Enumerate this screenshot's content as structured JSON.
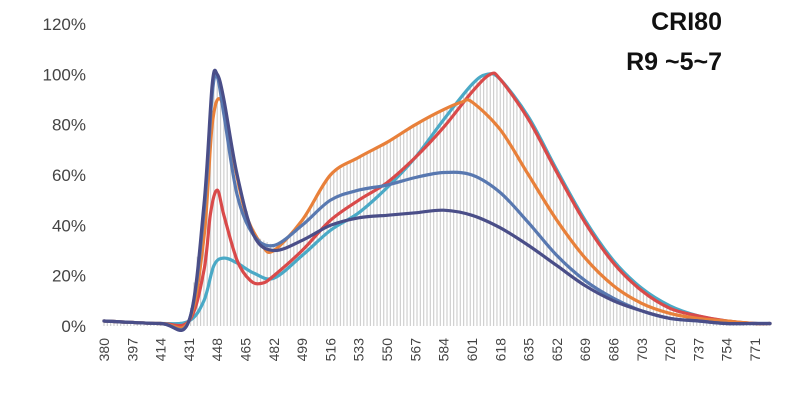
{
  "chart_data": {
    "type": "area",
    "annotations": [
      "CRI80",
      "R9 ~5~7"
    ],
    "xlabel": "",
    "ylabel": "",
    "x_ticks": [
      380,
      397,
      414,
      431,
      448,
      465,
      482,
      499,
      516,
      533,
      550,
      567,
      584,
      601,
      618,
      635,
      652,
      669,
      686,
      703,
      720,
      737,
      754,
      771
    ],
    "y_ticks": [
      "0%",
      "20%",
      "40%",
      "60%",
      "80%",
      "100%",
      "120%"
    ],
    "xlim": [
      380,
      780
    ],
    "ylim": [
      0,
      120
    ],
    "grid": false,
    "legend": "none",
    "series": [
      {
        "color": "#4aa9c6",
        "x": [
          380,
          414,
          431,
          440,
          446,
          452,
          460,
          470,
          482,
          499,
          516,
          533,
          550,
          567,
          584,
          601,
          610,
          618,
          635,
          652,
          669,
          686,
          703,
          720,
          737,
          754,
          771,
          780
        ],
        "values": [
          2,
          1,
          2,
          10,
          24,
          27,
          25,
          21,
          19,
          28,
          38,
          45,
          55,
          67,
          82,
          96,
          100,
          98,
          83,
          62,
          42,
          26,
          15,
          8,
          4,
          2,
          1,
          1
        ]
      },
      {
        "color": "#d94a4a",
        "x": [
          380,
          414,
          431,
          440,
          444,
          448,
          452,
          460,
          468,
          475,
          482,
          499,
          516,
          533,
          550,
          567,
          584,
          601,
          612,
          618,
          635,
          652,
          669,
          686,
          703,
          720,
          737,
          754,
          771,
          780
        ],
        "values": [
          2,
          1,
          2,
          22,
          45,
          54,
          44,
          26,
          18,
          17,
          20,
          30,
          42,
          50,
          57,
          67,
          79,
          93,
          100,
          98,
          82,
          61,
          41,
          25,
          14,
          7,
          4,
          2,
          1,
          1
        ]
      },
      {
        "color": "#e8803a",
        "x": [
          380,
          414,
          431,
          440,
          445,
          450,
          456,
          465,
          475,
          482,
          499,
          516,
          533,
          550,
          567,
          584,
          595,
          601,
          618,
          635,
          652,
          669,
          686,
          703,
          720,
          737,
          754,
          771,
          780
        ],
        "values": [
          2,
          1,
          2,
          35,
          80,
          90,
          72,
          45,
          32,
          30,
          42,
          60,
          67,
          73,
          80,
          86,
          89,
          89,
          78,
          60,
          42,
          27,
          16,
          9,
          5,
          3,
          2,
          1,
          1
        ]
      },
      {
        "color": "#5878b0",
        "x": [
          380,
          414,
          431,
          440,
          445,
          448,
          452,
          460,
          470,
          482,
          499,
          516,
          533,
          550,
          567,
          584,
          601,
          618,
          635,
          652,
          669,
          686,
          703,
          720,
          737,
          754,
          771,
          780
        ],
        "values": [
          2,
          1,
          2,
          45,
          92,
          99,
          84,
          52,
          36,
          32,
          40,
          50,
          54,
          56,
          59,
          61,
          60,
          53,
          41,
          28,
          18,
          11,
          6,
          3,
          2,
          1,
          1,
          1
        ]
      },
      {
        "color": "#4a4e88",
        "x": [
          380,
          414,
          431,
          440,
          445,
          448,
          452,
          460,
          470,
          482,
          499,
          516,
          533,
          550,
          567,
          584,
          601,
          618,
          635,
          652,
          669,
          686,
          703,
          720,
          737,
          754,
          771,
          780
        ],
        "values": [
          2,
          1,
          2,
          48,
          96,
          100,
          90,
          60,
          36,
          30,
          34,
          40,
          43,
          44,
          45,
          46,
          44,
          39,
          32,
          24,
          16,
          10,
          6,
          3,
          2,
          1,
          1,
          1
        ]
      }
    ]
  }
}
